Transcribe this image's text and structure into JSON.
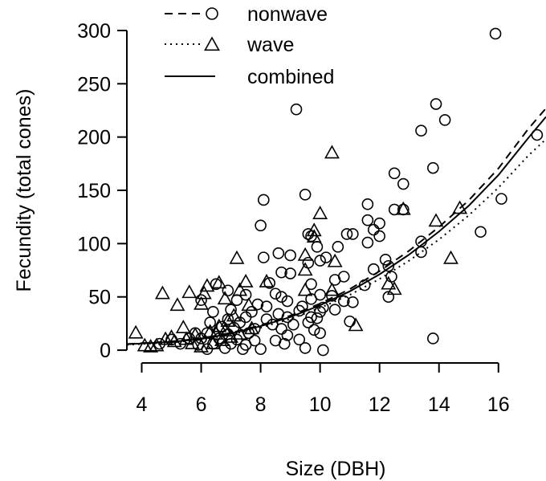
{
  "chart_data": {
    "type": "scatter",
    "xlabel": "Size (DBH)",
    "ylabel": "Fecundity (total cones)",
    "xlim": [
      3.5,
      17.6
    ],
    "ylim": [
      -12,
      306
    ],
    "x_ticks": [
      4,
      6,
      8,
      10,
      12,
      14,
      16
    ],
    "y_ticks": [
      0,
      50,
      100,
      150,
      200,
      250,
      300
    ],
    "legend_position": "top",
    "grid": false,
    "series": [
      {
        "name": "nonwave",
        "marker": "circle",
        "line_style": "dashed",
        "points": [
          [
            15.9,
            297
          ],
          [
            13.9,
            231
          ],
          [
            9.2,
            226
          ],
          [
            14.2,
            216
          ],
          [
            13.4,
            206
          ],
          [
            17.3,
            202
          ],
          [
            13.8,
            171
          ],
          [
            12.5,
            166
          ],
          [
            12.8,
            156
          ],
          [
            9.5,
            146
          ],
          [
            8.1,
            141
          ],
          [
            11.6,
            137
          ],
          [
            16.1,
            142
          ],
          [
            12.5,
            132
          ],
          [
            12.8,
            132
          ],
          [
            11.6,
            122
          ],
          [
            12.0,
            119
          ],
          [
            8.0,
            117
          ],
          [
            11.8,
            113
          ],
          [
            15.4,
            111
          ],
          [
            9.6,
            109
          ],
          [
            10.9,
            109
          ],
          [
            11.1,
            109
          ],
          [
            9.7,
            107
          ],
          [
            12.0,
            107
          ],
          [
            11.6,
            101
          ],
          [
            13.4,
            102
          ],
          [
            9.9,
            97
          ],
          [
            10.6,
            97
          ],
          [
            8.6,
            91
          ],
          [
            9.0,
            89
          ],
          [
            10.2,
            87
          ],
          [
            12.2,
            85
          ],
          [
            13.4,
            92
          ],
          [
            8.1,
            87
          ],
          [
            10.0,
            84
          ],
          [
            9.6,
            82
          ],
          [
            12.3,
            79
          ],
          [
            11.8,
            76
          ],
          [
            8.7,
            73
          ],
          [
            9.0,
            72
          ],
          [
            10.8,
            69
          ],
          [
            12.4,
            69
          ],
          [
            8.3,
            63
          ],
          [
            9.7,
            62
          ],
          [
            10.5,
            66
          ],
          [
            11.5,
            61
          ],
          [
            6.5,
            62
          ],
          [
            6.9,
            56
          ],
          [
            8.5,
            53
          ],
          [
            8.7,
            50
          ],
          [
            10.0,
            52
          ],
          [
            10.4,
            51
          ],
          [
            6.0,
            47
          ],
          [
            7.2,
            47
          ],
          [
            7.5,
            52
          ],
          [
            8.9,
            46
          ],
          [
            9.7,
            48
          ],
          [
            10.8,
            46
          ],
          [
            7.9,
            43
          ],
          [
            8.2,
            41
          ],
          [
            9.4,
            41
          ],
          [
            10.1,
            40
          ],
          [
            11.1,
            45
          ],
          [
            7.0,
            38
          ],
          [
            6.4,
            36
          ],
          [
            7.7,
            36
          ],
          [
            8.6,
            34
          ],
          [
            9.3,
            37
          ],
          [
            10.0,
            36
          ],
          [
            10.5,
            38
          ],
          [
            9.7,
            31
          ],
          [
            6.9,
            29
          ],
          [
            7.5,
            31
          ],
          [
            8.2,
            29
          ],
          [
            8.9,
            31
          ],
          [
            9.9,
            30
          ],
          [
            6.3,
            26
          ],
          [
            7.3,
            26
          ],
          [
            8.4,
            24
          ],
          [
            9.1,
            24
          ],
          [
            9.6,
            26
          ],
          [
            11.0,
            27
          ],
          [
            6.7,
            22
          ],
          [
            7.1,
            21
          ],
          [
            7.8,
            20
          ],
          [
            8.7,
            20
          ],
          [
            9.8,
            19
          ],
          [
            5.8,
            16
          ],
          [
            6.2,
            16
          ],
          [
            6.9,
            15
          ],
          [
            7.6,
            16
          ],
          [
            8.9,
            14
          ],
          [
            10.0,
            16
          ],
          [
            5.0,
            10
          ],
          [
            5.6,
            11
          ],
          [
            6.0,
            11
          ],
          [
            6.6,
            11
          ],
          [
            7.2,
            10
          ],
          [
            7.8,
            9
          ],
          [
            8.5,
            9
          ],
          [
            9.3,
            10
          ],
          [
            4.6,
            6
          ],
          [
            5.3,
            6
          ],
          [
            5.9,
            5
          ],
          [
            6.4,
            6
          ],
          [
            7.0,
            6
          ],
          [
            7.5,
            5
          ],
          [
            8.8,
            6
          ],
          [
            6.2,
            1
          ],
          [
            6.8,
            2
          ],
          [
            7.4,
            1
          ],
          [
            8.0,
            1
          ],
          [
            9.5,
            2
          ],
          [
            10.1,
            0
          ],
          [
            13.8,
            11
          ],
          [
            12.3,
            50
          ]
        ],
        "fit": [
          [
            3.5,
            5.8
          ],
          [
            5,
            8.2
          ],
          [
            6,
            11.0
          ],
          [
            7,
            16.3
          ],
          [
            8,
            23.4
          ],
          [
            9,
            32.4
          ],
          [
            10,
            43.7
          ],
          [
            11,
            57.3
          ],
          [
            12,
            74.1
          ],
          [
            13,
            93.4
          ],
          [
            14,
            115.6
          ],
          [
            15,
            140.5
          ],
          [
            16,
            170.6
          ],
          [
            17,
            207.5
          ],
          [
            17.6,
            227.0
          ]
        ]
      },
      {
        "name": "wave",
        "marker": "triangle",
        "line_style": "dotted",
        "points": [
          [
            10.4,
            185
          ],
          [
            10.0,
            128
          ],
          [
            12.8,
            132
          ],
          [
            14.7,
            133
          ],
          [
            13.9,
            121
          ],
          [
            9.8,
            112
          ],
          [
            14.4,
            86
          ],
          [
            7.2,
            86
          ],
          [
            9.5,
            89
          ],
          [
            9.8,
            106
          ],
          [
            10.5,
            83
          ],
          [
            12.5,
            57
          ],
          [
            12.3,
            62
          ],
          [
            9.5,
            75
          ],
          [
            8.2,
            64
          ],
          [
            7.5,
            64
          ],
          [
            6.6,
            63
          ],
          [
            6.2,
            60
          ],
          [
            7.3,
            56
          ],
          [
            4.7,
            53
          ],
          [
            5.6,
            54
          ],
          [
            6.1,
            53
          ],
          [
            5.2,
            42
          ],
          [
            6.0,
            43
          ],
          [
            6.8,
            48
          ],
          [
            7.6,
            42
          ],
          [
            9.5,
            56
          ],
          [
            10.4,
            56
          ],
          [
            11.2,
            23
          ],
          [
            3.8,
            16
          ],
          [
            4.5,
            4
          ],
          [
            4.8,
            10
          ],
          [
            5.0,
            12
          ],
          [
            5.5,
            10
          ],
          [
            5.8,
            14
          ],
          [
            6.3,
            17
          ],
          [
            6.6,
            22
          ],
          [
            6.9,
            27
          ],
          [
            7.1,
            32
          ],
          [
            5.4,
            21
          ],
          [
            4.1,
            4
          ],
          [
            4.3,
            3
          ],
          [
            5.1,
            8
          ],
          [
            5.7,
            6
          ],
          [
            6.0,
            3
          ],
          [
            6.4,
            6
          ],
          [
            6.7,
            9
          ],
          [
            7.0,
            12
          ],
          [
            7.3,
            15
          ],
          [
            7.7,
            20
          ],
          [
            6.5,
            15
          ],
          [
            6.8,
            18
          ]
        ],
        "fit": [
          [
            3.5,
            5.0
          ],
          [
            5,
            7.3
          ],
          [
            6,
            9.8
          ],
          [
            7,
            14.6
          ],
          [
            8,
            21.1
          ],
          [
            9,
            29.3
          ],
          [
            10,
            39.6
          ],
          [
            11,
            51.9
          ],
          [
            12,
            66.8
          ],
          [
            13,
            84.1
          ],
          [
            14,
            103.8
          ],
          [
            15,
            126.4
          ],
          [
            16,
            152.5
          ],
          [
            17,
            182.5
          ],
          [
            17.6,
            198.0
          ]
        ]
      },
      {
        "name": "combined",
        "marker": "none",
        "line_style": "solid",
        "fit": [
          [
            3.5,
            5.5
          ],
          [
            5,
            7.8
          ],
          [
            6,
            10.5
          ],
          [
            7,
            15.6
          ],
          [
            8,
            22.5
          ],
          [
            9,
            31.1
          ],
          [
            10,
            42.1
          ],
          [
            11,
            55.2
          ],
          [
            12,
            71.2
          ],
          [
            13,
            89.8
          ],
          [
            14,
            111.3
          ],
          [
            15,
            135.5
          ],
          [
            16,
            164.3
          ],
          [
            17,
            199.0
          ],
          [
            17.6,
            219.0
          ]
        ]
      }
    ]
  }
}
